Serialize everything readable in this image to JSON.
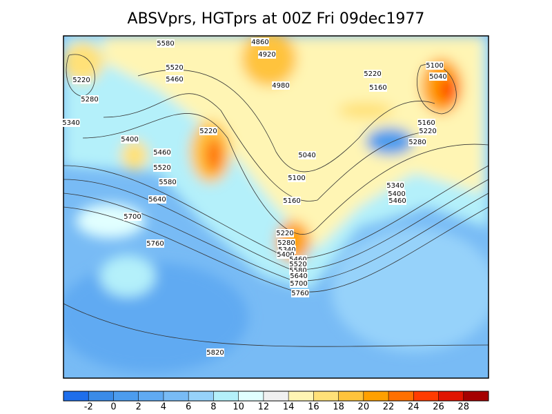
{
  "title": "ABSVprs, HGTprs at 00Z Fri 09dec1977",
  "contour_labels": [
    5580,
    5520,
    5460,
    4860,
    4920,
    4980,
    5220,
    5280,
    5340,
    5400,
    5460,
    5520,
    5580,
    5640,
    5700,
    5760,
    5220,
    5040,
    5100,
    5160,
    5220,
    5160,
    5100,
    5040,
    5160,
    5220,
    5280,
    5340,
    5400,
    5460,
    5220,
    5280,
    5340,
    5400,
    5460,
    5520,
    5580,
    5640,
    5700,
    5760,
    5820
  ],
  "colorbar": {
    "ticks": [
      -2,
      0,
      2,
      4,
      6,
      8,
      10,
      12,
      14,
      16,
      18,
      20,
      22,
      24,
      26,
      28
    ],
    "colors": [
      "#1e6eeb",
      "#3a8be8",
      "#4c9cee",
      "#60aaf2",
      "#78bbf5",
      "#96d2fa",
      "#b4f0fa",
      "#e1ffff",
      "#f0f0f0",
      "#fff5b4",
      "#ffe178",
      "#ffc33c",
      "#ffa000",
      "#ff7000",
      "#ff3c00",
      "#e11400",
      "#a50000"
    ]
  }
}
